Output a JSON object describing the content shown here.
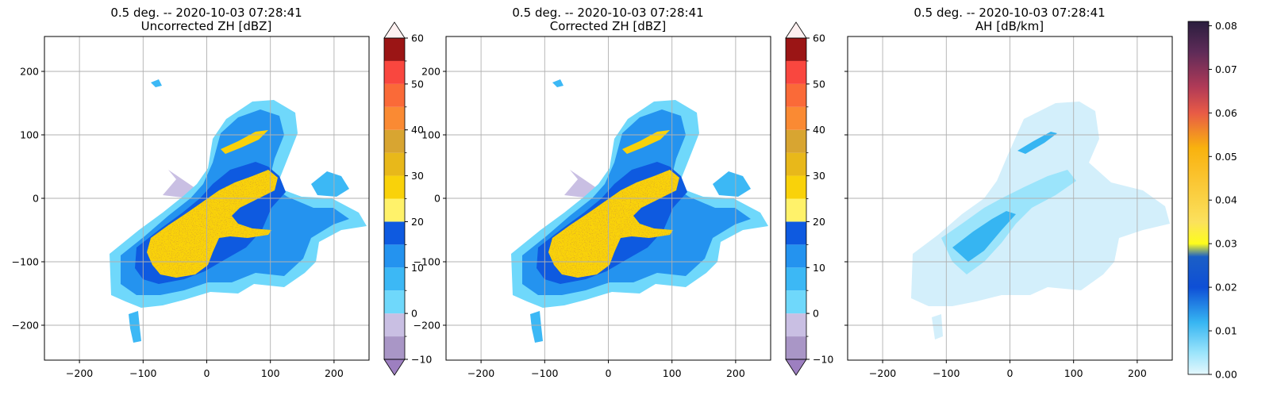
{
  "chart_data": [
    {
      "type": "heatmap",
      "title": "0.5 deg. -- 2020-10-03 07:28:41",
      "subtitle": "Uncorrected ZH [dBZ]",
      "xlim": [
        -255,
        255
      ],
      "ylim": [
        -255,
        255
      ],
      "x_ticks": [
        -200,
        -100,
        0,
        100,
        200
      ],
      "y_ticks": [
        200,
        100,
        0,
        -100,
        -200
      ],
      "grid": true,
      "colorbar": {
        "type": "discrete",
        "range": [
          -10,
          60
        ],
        "ticks": [
          -10,
          0,
          10,
          20,
          30,
          40,
          50,
          60
        ],
        "extend": "both",
        "bins": [
          {
            "from": -10,
            "to": -5,
            "color": "#a996c6"
          },
          {
            "from": -5,
            "to": 0,
            "color": "#c9bfe3"
          },
          {
            "from": 0,
            "to": 5,
            "color": "#6fd8fb"
          },
          {
            "from": 5,
            "to": 10,
            "color": "#3cb8f5"
          },
          {
            "from": 10,
            "to": 15,
            "color": "#2493ef"
          },
          {
            "from": 15,
            "to": 20,
            "color": "#0e5ae0"
          },
          {
            "from": 20,
            "to": 25,
            "color": "#fff26a"
          },
          {
            "from": 25,
            "to": 30,
            "color": "#f9d20a"
          },
          {
            "from": 30,
            "to": 35,
            "color": "#e8b81a"
          },
          {
            "from": 35,
            "to": 40,
            "color": "#d8a531"
          },
          {
            "from": 40,
            "to": 45,
            "color": "#fa8a33"
          },
          {
            "from": 45,
            "to": 50,
            "color": "#fa6a38"
          },
          {
            "from": 50,
            "to": 55,
            "color": "#f9473f"
          },
          {
            "from": 55,
            "to": 60,
            "color": "#9b1515"
          }
        ],
        "under_color": "#9d7fc0",
        "over_color": "#fdf0f0"
      }
    },
    {
      "type": "heatmap",
      "title": "0.5 deg. -- 2020-10-03 07:28:41",
      "subtitle": "Corrected ZH [dBZ]",
      "xlim": [
        -255,
        255
      ],
      "ylim": [
        -255,
        255
      ],
      "x_ticks": [
        -200,
        -100,
        0,
        100,
        200
      ],
      "y_ticks": [
        200,
        100,
        0,
        -100,
        -200
      ],
      "grid": true,
      "colorbar": {
        "type": "discrete",
        "range": [
          -10,
          60
        ],
        "ticks": [
          -10,
          0,
          10,
          20,
          30,
          40,
          50,
          60
        ],
        "extend": "both",
        "bins": [
          {
            "from": -10,
            "to": -5,
            "color": "#a996c6"
          },
          {
            "from": -5,
            "to": 0,
            "color": "#c9bfe3"
          },
          {
            "from": 0,
            "to": 5,
            "color": "#6fd8fb"
          },
          {
            "from": 5,
            "to": 10,
            "color": "#3cb8f5"
          },
          {
            "from": 10,
            "to": 15,
            "color": "#2493ef"
          },
          {
            "from": 15,
            "to": 20,
            "color": "#0e5ae0"
          },
          {
            "from": 20,
            "to": 25,
            "color": "#fff26a"
          },
          {
            "from": 25,
            "to": 30,
            "color": "#f9d20a"
          },
          {
            "from": 30,
            "to": 35,
            "color": "#e8b81a"
          },
          {
            "from": 35,
            "to": 40,
            "color": "#d8a531"
          },
          {
            "from": 40,
            "to": 45,
            "color": "#fa8a33"
          },
          {
            "from": 45,
            "to": 50,
            "color": "#fa6a38"
          },
          {
            "from": 50,
            "to": 55,
            "color": "#f9473f"
          },
          {
            "from": 55,
            "to": 60,
            "color": "#9b1515"
          }
        ],
        "under_color": "#9d7fc0",
        "over_color": "#fdf0f0"
      }
    },
    {
      "type": "heatmap",
      "title": "0.5 deg. -- 2020-10-03 07:28:41",
      "subtitle": "AH [dB/km]",
      "xlim": [
        -255,
        255
      ],
      "ylim": [
        -255,
        255
      ],
      "x_ticks": [
        -200,
        -100,
        0,
        100,
        200
      ],
      "y_ticks": [],
      "grid": true,
      "colorbar": {
        "type": "continuous",
        "range": [
          0.0,
          0.081
        ],
        "ticks": [
          0.0,
          0.01,
          0.02,
          0.03,
          0.04,
          0.05,
          0.06,
          0.07,
          0.08
        ],
        "tick_labels": [
          "0.00",
          "0.01",
          "0.02",
          "0.03",
          "0.04",
          "0.05",
          "0.06",
          "0.07",
          "0.08"
        ],
        "extend": "neither",
        "stops": [
          {
            "value": 0.0,
            "color": "#e4f7fd"
          },
          {
            "value": 0.005,
            "color": "#9be4fb"
          },
          {
            "value": 0.012,
            "color": "#36b5f2"
          },
          {
            "value": 0.02,
            "color": "#0e4fd6"
          },
          {
            "value": 0.027,
            "color": "#1b5fc6"
          },
          {
            "value": 0.03,
            "color": "#fdfc1c"
          },
          {
            "value": 0.035,
            "color": "#fbe15d"
          },
          {
            "value": 0.045,
            "color": "#fac430"
          },
          {
            "value": 0.052,
            "color": "#f9b20e"
          },
          {
            "value": 0.06,
            "color": "#e85b46"
          },
          {
            "value": 0.066,
            "color": "#b03a57"
          },
          {
            "value": 0.074,
            "color": "#5e2b58"
          },
          {
            "value": 0.081,
            "color": "#2a1e3e"
          }
        ]
      }
    }
  ]
}
